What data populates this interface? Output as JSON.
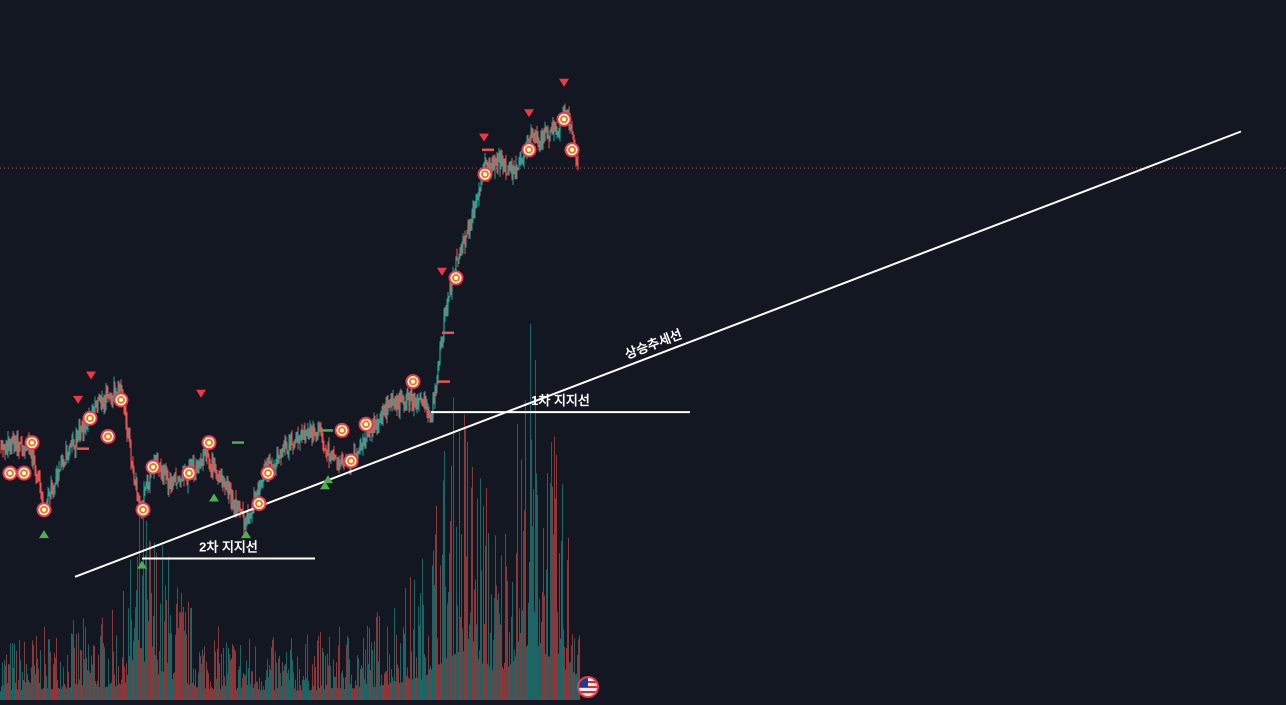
{
  "chart_data": {
    "type": "candlestick",
    "x_count": 620,
    "ylim": [
      0,
      100
    ],
    "grid": false,
    "legend": "none",
    "colors": {
      "background": "#131722",
      "up": "#26a69a",
      "down": "#ef5350",
      "line": "#ffffff",
      "pivot_low": "#4caf50",
      "pivot_high": "#f23645",
      "signal_badge": "#f57c00",
      "level_dotted": "#b2505a"
    },
    "price_path": [
      [
        0,
        33
      ],
      [
        15,
        34
      ],
      [
        30,
        33
      ],
      [
        45,
        23
      ],
      [
        60,
        30
      ],
      [
        75,
        34
      ],
      [
        95,
        40
      ],
      [
        120,
        43
      ],
      [
        140,
        23
      ],
      [
        155,
        31
      ],
      [
        170,
        27
      ],
      [
        185,
        28
      ],
      [
        205,
        32
      ],
      [
        225,
        27
      ],
      [
        245,
        21
      ],
      [
        265,
        29
      ],
      [
        290,
        34
      ],
      [
        315,
        36
      ],
      [
        335,
        31
      ],
      [
        350,
        30
      ],
      [
        365,
        35
      ],
      [
        390,
        40
      ],
      [
        410,
        41
      ],
      [
        425,
        40
      ],
      [
        432,
        39
      ],
      [
        445,
        55
      ],
      [
        455,
        63
      ],
      [
        470,
        70
      ],
      [
        485,
        79
      ],
      [
        500,
        80
      ],
      [
        515,
        78
      ],
      [
        530,
        84
      ],
      [
        545,
        84
      ],
      [
        560,
        86
      ],
      [
        565,
        89
      ],
      [
        572,
        84
      ],
      [
        578,
        80
      ]
    ],
    "volume_profile": [
      [
        0,
        4
      ],
      [
        60,
        5
      ],
      [
        120,
        6
      ],
      [
        142,
        14
      ],
      [
        200,
        5
      ],
      [
        280,
        4
      ],
      [
        360,
        5
      ],
      [
        420,
        9
      ],
      [
        445,
        18
      ],
      [
        460,
        22
      ],
      [
        500,
        11
      ],
      [
        530,
        26
      ],
      [
        560,
        15
      ],
      [
        578,
        10
      ]
    ],
    "pivot_lows": [
      [
        44,
        19
      ],
      [
        142,
        14
      ],
      [
        214,
        25
      ],
      [
        246,
        19
      ],
      [
        325,
        27
      ],
      [
        328,
        28
      ]
    ],
    "pivot_highs": [
      [
        78,
        41
      ],
      [
        91,
        45
      ],
      [
        201,
        42
      ],
      [
        442,
        62
      ],
      [
        484,
        84
      ],
      [
        529,
        88
      ],
      [
        564,
        93
      ]
    ],
    "signal_badges": [
      [
        10,
        29
      ],
      [
        24,
        29
      ],
      [
        32,
        34
      ],
      [
        44,
        23
      ],
      [
        90,
        38
      ],
      [
        108,
        35
      ],
      [
        121,
        41
      ],
      [
        143,
        23
      ],
      [
        153,
        30
      ],
      [
        189,
        29
      ],
      [
        209,
        34
      ],
      [
        268,
        29
      ],
      [
        259,
        24
      ],
      [
        342,
        36
      ],
      [
        351,
        31
      ],
      [
        366,
        37
      ],
      [
        413,
        44
      ],
      [
        456,
        61
      ],
      [
        485,
        78
      ],
      [
        529,
        82
      ],
      [
        564,
        87
      ],
      [
        572,
        82
      ]
    ],
    "level_markers": [
      [
        83,
        33,
        "#ef5350"
      ],
      [
        238,
        34,
        "#4caf50"
      ],
      [
        327,
        36,
        "#4caf50"
      ],
      [
        444,
        44,
        "#ef5350"
      ],
      [
        448,
        52,
        "#ef5350"
      ],
      [
        488,
        82,
        "#ef5350"
      ]
    ],
    "horizontal_level": 79,
    "lines": [
      {
        "name": "uptrend",
        "label": "상승추세선",
        "from": [
          75,
          12
        ],
        "to": [
          1241,
          85
        ]
      },
      {
        "name": "support-1",
        "label": "1차 지지선",
        "from": [
          431,
          39
        ],
        "to": [
          690,
          39
        ]
      },
      {
        "name": "support-2",
        "label": "2차 지지선",
        "from": [
          142,
          15
        ],
        "to": [
          315,
          15
        ]
      }
    ]
  }
}
